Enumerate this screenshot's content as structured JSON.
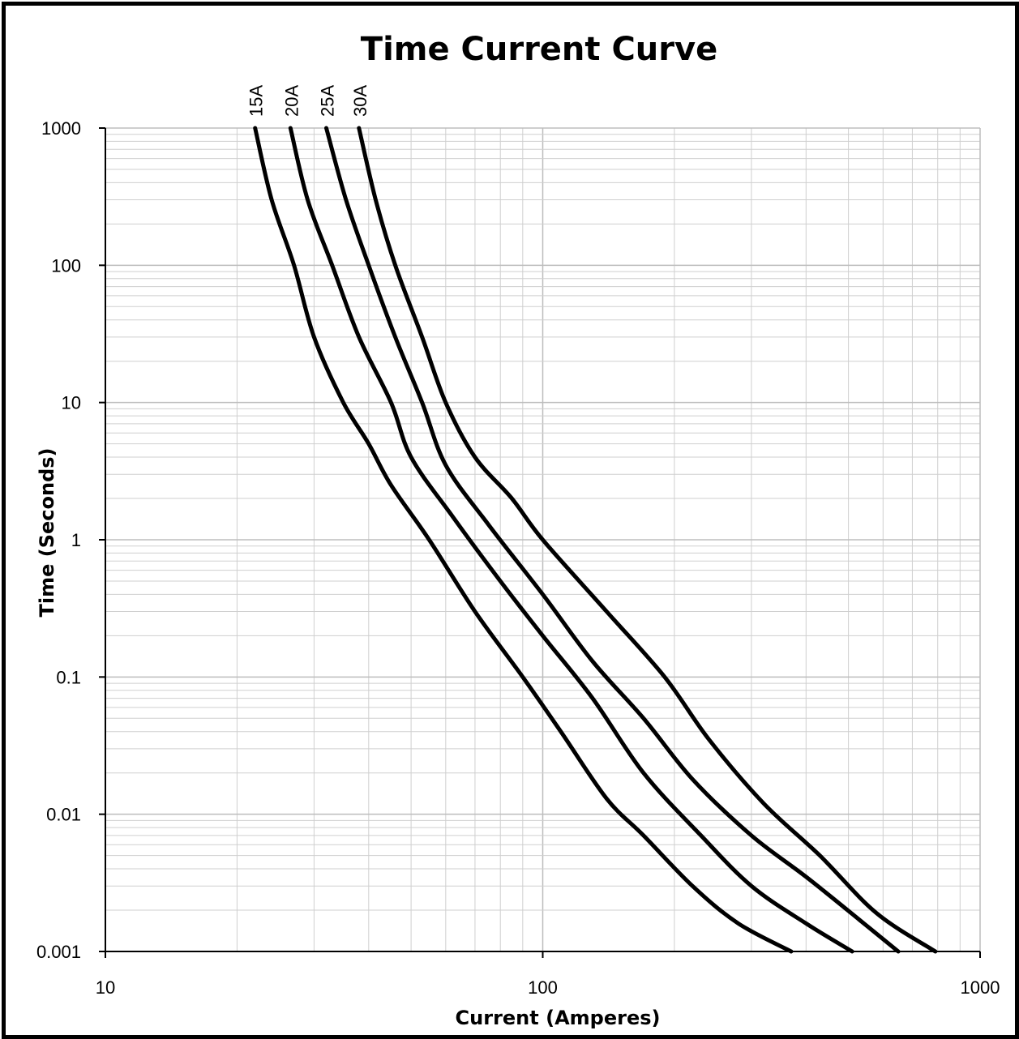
{
  "chart_data": {
    "type": "line",
    "title": "Time Current Curve",
    "xlabel": "Current  (Amperes)",
    "ylabel": "Time (Seconds)",
    "xscale": "log",
    "yscale": "log",
    "xlim": [
      10,
      1000
    ],
    "ylim": [
      0.001,
      1000
    ],
    "x_ticks": [
      "10",
      "100",
      "1000"
    ],
    "y_ticks": [
      "0.001",
      "0.01",
      "0.1",
      "1",
      "10",
      "100",
      "1000"
    ],
    "grid": true,
    "legend": "labels above curves at top",
    "series": [
      {
        "name": "15A",
        "points": [
          [
            22,
            1000
          ],
          [
            24,
            300
          ],
          [
            27,
            100
          ],
          [
            30,
            30
          ],
          [
            35,
            10
          ],
          [
            40,
            5
          ],
          [
            45,
            2.5
          ],
          [
            55,
            1
          ],
          [
            70,
            0.3
          ],
          [
            90,
            0.1
          ],
          [
            110,
            0.04
          ],
          [
            140,
            0.013
          ],
          [
            170,
            0.007
          ],
          [
            220,
            0.003
          ],
          [
            280,
            0.0016
          ],
          [
            370,
            0.001
          ]
        ]
      },
      {
        "name": "20A",
        "points": [
          [
            26.5,
            1000
          ],
          [
            29,
            300
          ],
          [
            33,
            100
          ],
          [
            38,
            30
          ],
          [
            45,
            10
          ],
          [
            50,
            4
          ],
          [
            62,
            1.5
          ],
          [
            80,
            0.5
          ],
          [
            100,
            0.2
          ],
          [
            130,
            0.07
          ],
          [
            170,
            0.02
          ],
          [
            230,
            0.007
          ],
          [
            300,
            0.003
          ],
          [
            400,
            0.0016
          ],
          [
            510,
            0.001
          ]
        ]
      },
      {
        "name": "25A",
        "points": [
          [
            32,
            1000
          ],
          [
            35.5,
            300
          ],
          [
            40,
            100
          ],
          [
            46,
            30
          ],
          [
            53,
            10
          ],
          [
            60,
            3.5
          ],
          [
            75,
            1.3
          ],
          [
            100,
            0.4
          ],
          [
            130,
            0.13
          ],
          [
            170,
            0.05
          ],
          [
            220,
            0.018
          ],
          [
            300,
            0.007
          ],
          [
            400,
            0.0035
          ],
          [
            530,
            0.0017
          ],
          [
            650,
            0.001
          ]
        ]
      },
      {
        "name": "30A",
        "points": [
          [
            38,
            1000
          ],
          [
            41.5,
            300
          ],
          [
            46,
            100
          ],
          [
            53,
            30
          ],
          [
            60,
            10
          ],
          [
            70,
            4
          ],
          [
            85,
            2
          ],
          [
            100,
            1
          ],
          [
            140,
            0.3
          ],
          [
            190,
            0.1
          ],
          [
            240,
            0.035
          ],
          [
            320,
            0.012
          ],
          [
            430,
            0.005
          ],
          [
            580,
            0.0019
          ],
          [
            790,
            0.001
          ]
        ]
      }
    ]
  }
}
